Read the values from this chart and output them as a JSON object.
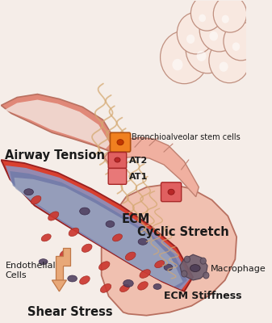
{
  "bg": "#f5ede8",
  "label_color": "#1a1a1a",
  "labels": {
    "airway_tension": "Airway Tension",
    "cyclic_stretch": "Cyclic Stretch",
    "ecm": "ECM",
    "ecm_stiffness": "ECM Stiffness",
    "shear_stress": "Shear Stress",
    "endothelial_cells": "Endothelial\nCells",
    "macrophage": "Macrophage",
    "bronchioalveolar": "Bronchioalveolar stem cells",
    "at2": "AT2",
    "at1": "AT1"
  },
  "alveolus_fill": "#f0c0b0",
  "alveolus_stroke": "#b87060",
  "bubble_fill": "#f8e8e0",
  "bubble_stroke": "#c09080",
  "airway_fill": "#e8906878",
  "airway_coral": "#e08878",
  "airway_white": "#f5ede8",
  "vessel_red": "#d94030",
  "vessel_blue": "#8898c8",
  "vessel_dark": "#6878a8",
  "vessel_lumen": "#a0a8c0",
  "rbc_fill": "#cc3830",
  "rbc_edge": "#a02820",
  "endo_fill": "#504060",
  "ecm_fiber": "#d4a870",
  "epithelial_fill": "#f0b0a0",
  "epithelial_edge": "#c08070",
  "orange_cell": "#f08020",
  "red_cell": "#d85050",
  "macro_fill": "#706070",
  "macro_edge": "#504050",
  "arrow_fill": "#e8a878",
  "arrow_edge": "#c07848"
}
